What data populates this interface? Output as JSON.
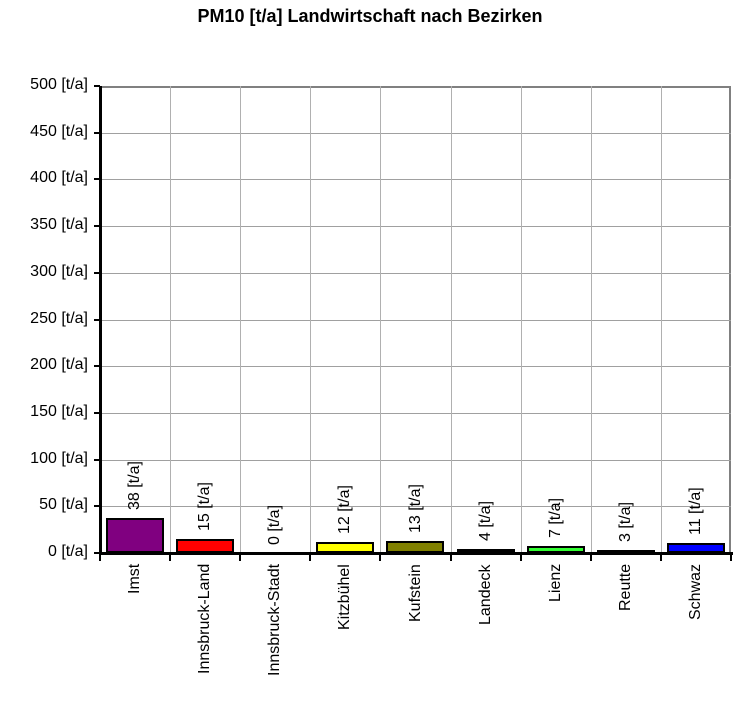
{
  "chart_data": {
    "type": "bar",
    "title": "PM10 [t/a] Landwirtschaft nach Bezirken",
    "xlabel": "",
    "ylabel": "",
    "ylim": [
      0,
      500
    ],
    "yticks": [
      0,
      50,
      100,
      150,
      200,
      250,
      300,
      350,
      400,
      450,
      500
    ],
    "ytick_labels": [
      "0 [t/a]",
      "50 [t/a]",
      "100 [t/a]",
      "150 [t/a]",
      "200 [t/a]",
      "250 [t/a]",
      "300 [t/a]",
      "350 [t/a]",
      "400 [t/a]",
      "450 [t/a]",
      "500 [t/a]"
    ],
    "categories": [
      "Imst",
      "Innsbruck-Land",
      "Innsbruck-Stadt",
      "Kitzbühel",
      "Kufstein",
      "Landeck",
      "Lienz",
      "Reutte",
      "Schwaz"
    ],
    "values": [
      38,
      15,
      0,
      12,
      13,
      4,
      7,
      3,
      11
    ],
    "data_labels": [
      "38 [t/a]",
      "15 [t/a]",
      "0 [t/a]",
      "12 [t/a]",
      "13 [t/a]",
      "4 [t/a]",
      "7 [t/a]",
      "3 [t/a]",
      "11 [t/a]"
    ],
    "colors": [
      "#800080",
      "#ff0000",
      "#ffffff",
      "#ffff00",
      "#808000",
      "#ccff66",
      "#33ff33",
      "#000000",
      "#0000ff"
    ],
    "grid": true,
    "legend": null
  }
}
